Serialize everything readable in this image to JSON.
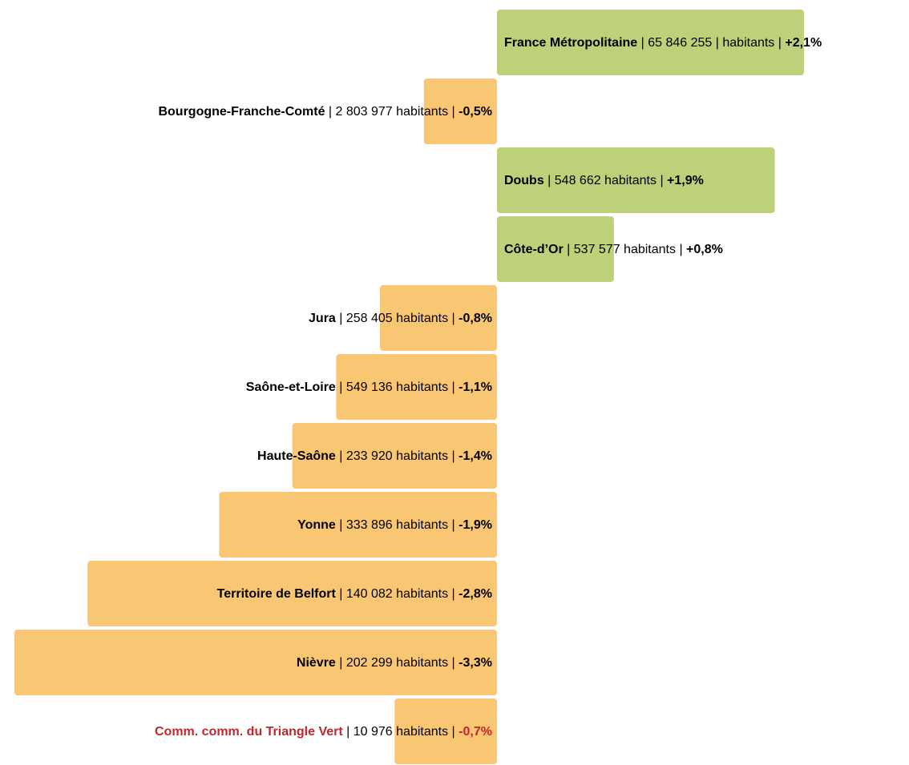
{
  "chart_data": {
    "type": "diverging-bar",
    "categories": [
      "France Métropolitaine",
      "Bourgogne-Franche-Comté",
      "Doubs",
      "Côte-d’Or",
      "Jura",
      "Saône-et-Loire",
      "Haute-Saône",
      "Yonne",
      "Territoire de Belfort",
      "Nièvre",
      "Comm. comm. du Triangle Vert"
    ],
    "details": [
      "| 65 846 255 | habitants |",
      "| 2 803 977 habitants |",
      "| 548 662 habitants |",
      "| 537 577 habitants |",
      "| 258 405 habitants |",
      "| 549 136 habitants |",
      "| 233 920 habitants |",
      "| 333 896 habitants |",
      "| 140 082 habitants |",
      "| 202 299 habitants |",
      "| 10 976 habitants |"
    ],
    "values": [
      2.1,
      -0.5,
      1.9,
      0.8,
      -0.8,
      -1.1,
      -1.4,
      -1.9,
      -2.8,
      -3.3,
      -0.7
    ],
    "value_labels": [
      "+2,1%",
      "-0,5%",
      "+1,9%",
      "+0,8%",
      "-0,8%",
      "-1,1%",
      "-1,4%",
      "-1,9%",
      "-2,8%",
      "-3,3%",
      "-0,7%"
    ],
    "name_colors": [
      "#000000",
      "#000000",
      "#000000",
      "#000000",
      "#000000",
      "#000000",
      "#000000",
      "#000000",
      "#000000",
      "#000000",
      "#c0272d"
    ],
    "positive_color": "#bdd07a",
    "negative_color": "#f9c774",
    "xlim": [
      -3.3,
      2.1
    ]
  }
}
